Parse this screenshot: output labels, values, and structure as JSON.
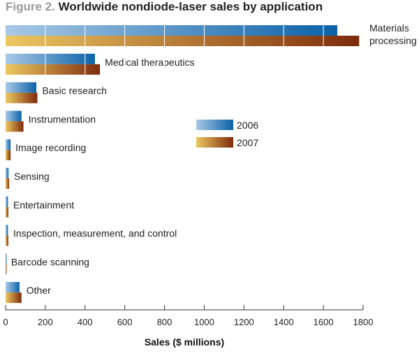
{
  "figure": {
    "label": "Figure 2.",
    "title": "Worldwide nondiode-laser sales by application"
  },
  "colors": {
    "s2006_light": "#a9c9e6",
    "s2006_dark": "#0b62a8",
    "s2007_light": "#ecc861",
    "s2007_dark": "#7e2c0c",
    "axis": "#333333",
    "grid": "#ffffff"
  },
  "chart_data": {
    "type": "bar",
    "orientation": "horizontal",
    "title": "Worldwide nondiode-laser sales by application",
    "xlabel": "Sales ($ millions)",
    "ylabel": "",
    "xlim": [
      0,
      1800
    ],
    "xticks": [
      0,
      200,
      400,
      600,
      800,
      1000,
      1200,
      1400,
      1600,
      1800
    ],
    "categories": [
      "Materials processing",
      "Medical therapeutics",
      "Basic research",
      "Instrumentation",
      "Image recording",
      "Sensing",
      "Entertainment",
      "Inspection, measurement, and control",
      "Barcode scanning",
      "Other"
    ],
    "series": [
      {
        "name": "2006",
        "values": [
          1670,
          450,
          155,
          80,
          25,
          15,
          12,
          12,
          3,
          70
        ]
      },
      {
        "name": "2007",
        "values": [
          1780,
          475,
          160,
          90,
          25,
          18,
          14,
          14,
          3,
          80
        ]
      }
    ],
    "legend_position": "middle-right",
    "grid": true
  }
}
